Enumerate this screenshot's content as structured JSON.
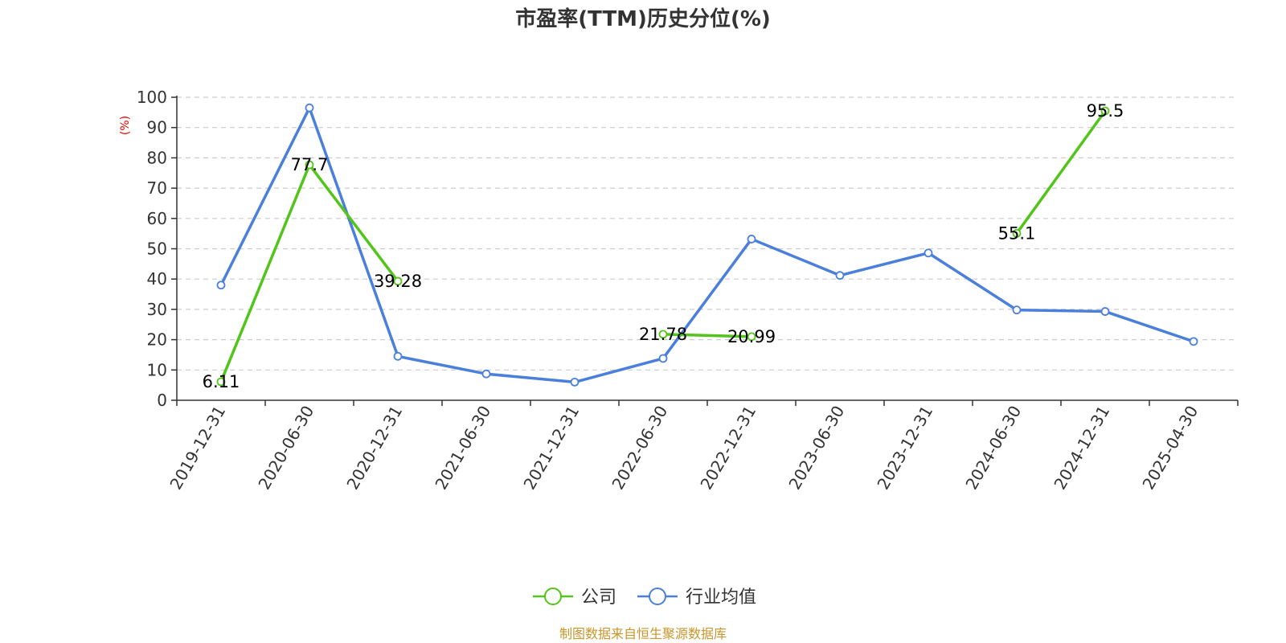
{
  "chart_data": {
    "type": "line",
    "title": "市盈率(TTM)历史分位(%)",
    "ylabel": "(%)",
    "ylim": [
      0,
      100
    ],
    "yticks": [
      0,
      10,
      20,
      30,
      40,
      50,
      60,
      70,
      80,
      90,
      100
    ],
    "grid": true,
    "legend_position": "bottom",
    "categories": [
      "2019-12-31",
      "2020-06-30",
      "2020-12-31",
      "2021-06-30",
      "2021-12-31",
      "2022-06-30",
      "2022-12-31",
      "2023-06-30",
      "2023-12-31",
      "2024-06-30",
      "2024-12-31",
      "2025-04-30"
    ],
    "series": [
      {
        "name": "公司",
        "color": "#52c41a",
        "values": [
          6.11,
          77.7,
          39.28,
          null,
          null,
          21.78,
          20.99,
          null,
          null,
          55.1,
          95.5,
          null
        ],
        "labels": [
          "6.11",
          "77.7",
          "39.28",
          null,
          null,
          "21.78",
          "20.99",
          null,
          null,
          "55.1",
          "95.5",
          null
        ]
      },
      {
        "name": "行业均值",
        "color": "#4a7fdb",
        "values": [
          38,
          96.5,
          14.5,
          8.7,
          6,
          13.8,
          53.2,
          41.2,
          48.6,
          29.8,
          29.3,
          19.4
        ],
        "labels": null
      }
    ]
  },
  "source": "制图数据来自恒生聚源数据库"
}
